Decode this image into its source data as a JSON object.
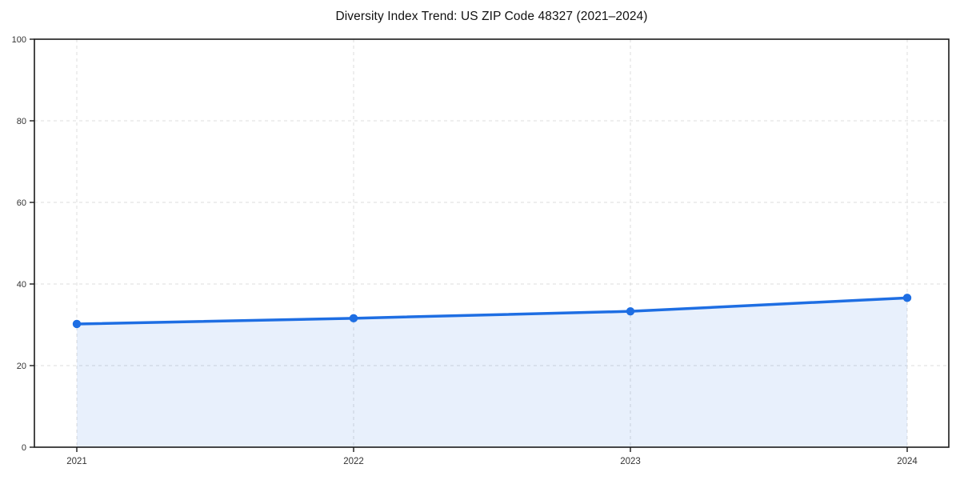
{
  "chart_data": {
    "type": "area",
    "title": "Diversity Index Trend: US ZIP Code 48327 (2021–2024)",
    "x": [
      2021,
      2022,
      2023,
      2024
    ],
    "x_labels": [
      "2021",
      "2022",
      "2023",
      "2024"
    ],
    "series": [
      {
        "name": "Diversity Index",
        "values": [
          30.2,
          31.6,
          33.3,
          36.6
        ]
      }
    ],
    "xlabel": "",
    "ylabel": "",
    "ylim": [
      0,
      100
    ],
    "yticks": [
      0,
      20,
      40,
      60,
      80,
      100
    ],
    "ytick_labels": [
      "0",
      "20",
      "40",
      "60",
      "80",
      "100"
    ],
    "grid": "dashed",
    "legend": "none",
    "colors": {
      "line": "#1e6ee3",
      "marker": "#1e6ee3",
      "fill": "#1e6ee3",
      "fill_opacity": 0.1,
      "grid": "#dcdcdc",
      "spine": "#1a1a1a",
      "tick_label": "#333333",
      "title": "#111111",
      "background": "#ffffff"
    }
  }
}
